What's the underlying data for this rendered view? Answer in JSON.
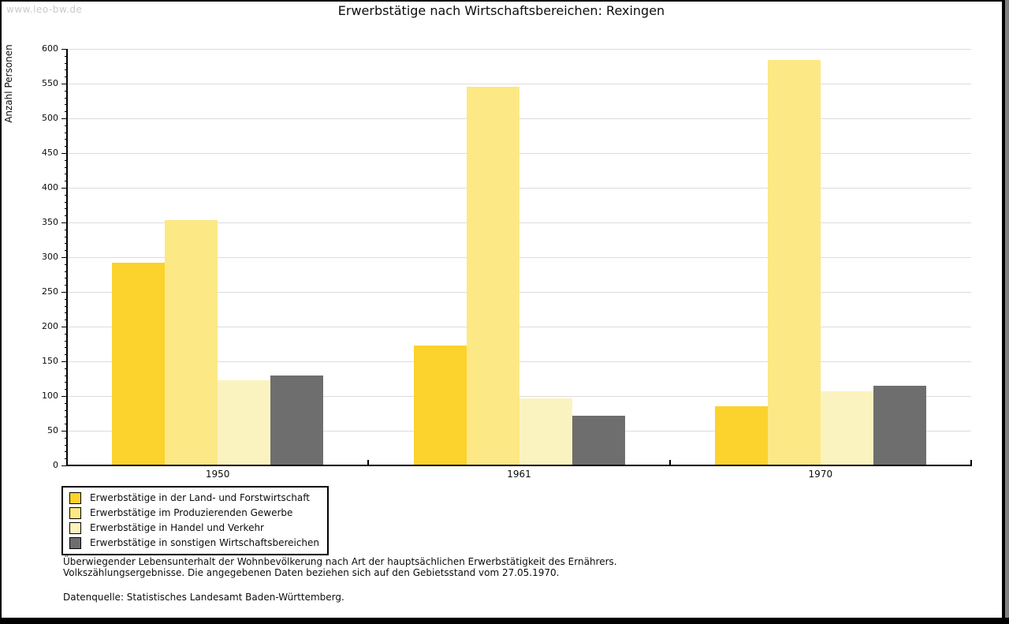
{
  "page": {
    "watermark": "www.leo-bw.de",
    "title": "Erwerbstätige nach Wirtschaftsbereichen: Rexingen"
  },
  "chart_data": {
    "type": "bar",
    "title": "Erwerbstätige nach Wirtschaftsbereichen: Rexingen",
    "xlabel": "",
    "ylabel": "Anzahl Personen",
    "ylim": [
      0,
      600
    ],
    "ytick_step": 50,
    "yminor_step": 10,
    "grid": true,
    "legend_position": "bottom-left",
    "categories": [
      "1950",
      "1961",
      "1970"
    ],
    "series": [
      {
        "name": "Erwerbstätige in der Land- und Forstwirtschaft",
        "color": "#fcd22c",
        "values": [
          292,
          173,
          85
        ]
      },
      {
        "name": "Erwerbstätige im Produzierenden Gewerbe",
        "color": "#fce885",
        "values": [
          353,
          546,
          584
        ]
      },
      {
        "name": "Erwerbstätige in Handel und Verkehr",
        "color": "#fbf3bf",
        "values": [
          123,
          97,
          107
        ]
      },
      {
        "name": "Erwerbstätige in sonstigen Wirtschaftsbereichen",
        "color": "#6e6e6e",
        "values": [
          130,
          72,
          115
        ]
      }
    ],
    "colors": {
      "grid": "#dcdcdc",
      "axis": "#000000"
    }
  },
  "footnotes": {
    "line1": "Überwiegender Lebensunterhalt der Wohnbevölkerung nach Art der hauptsächlichen Erwerbstätigkeit des Ernährers.",
    "line2": "Volkszählungsergebnisse. Die angegebenen Daten beziehen sich auf den Gebietsstand vom 27.05.1970.",
    "source": "Datenquelle: Statistisches Landesamt Baden-Württemberg."
  }
}
